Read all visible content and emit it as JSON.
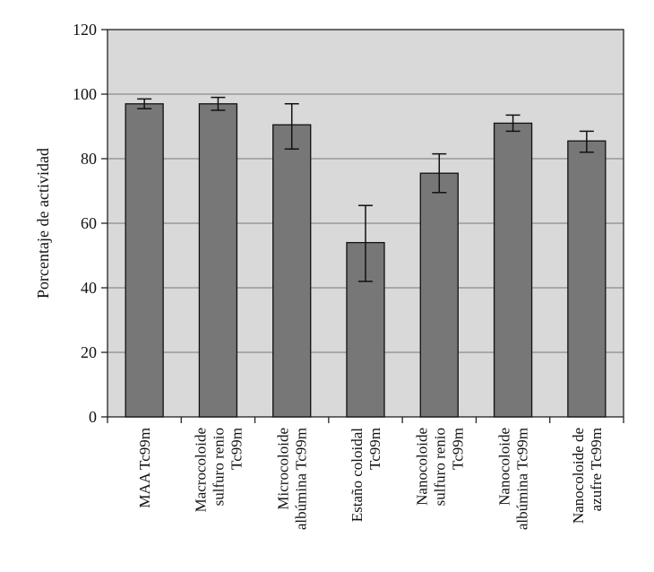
{
  "chart_data": {
    "type": "bar",
    "title": "",
    "xlabel": "",
    "ylabel": "Porcentaje de actividad",
    "ylim": [
      0,
      120
    ],
    "yticks": [
      0,
      20,
      40,
      60,
      80,
      100,
      120
    ],
    "grid": true,
    "legend": "none",
    "colors": {
      "plot_bg": "#d9d9d9",
      "bar": "#777777",
      "grid": "#8c8c8c",
      "axis": "#222222"
    },
    "categories": [
      [
        "MAA Tc99m"
      ],
      [
        "Macrocoloide",
        "sulfuro renio",
        "Tc99m"
      ],
      [
        "Microcoloide",
        "albúmina Tc99m"
      ],
      [
        "Estaño coloidal",
        "Tc99m"
      ],
      [
        "Nanocoloide",
        "sulfuro renio",
        "Tc99m"
      ],
      [
        "Nanocoloide",
        "albúmina Tc99m"
      ],
      [
        "Nanocoloide de",
        "azufre Tc99m"
      ]
    ],
    "values": [
      97,
      97,
      90.5,
      54,
      75.5,
      91,
      85.5
    ],
    "error_low": [
      95.5,
      95,
      83,
      42,
      69.5,
      88.5,
      82
    ],
    "error_high": [
      98.5,
      99,
      97,
      65.5,
      81.5,
      93.5,
      88.5
    ]
  }
}
